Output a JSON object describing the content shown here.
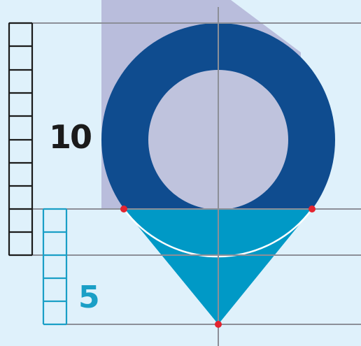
{
  "labels": {
    "big_scale": "10",
    "small_scale": "5"
  },
  "colors": {
    "background": "#dff1fb",
    "shadow": "#b9bddc",
    "ring": "#0f4c8f",
    "inner_circle": "#bfc3dd",
    "tip": "#0099c6",
    "guide_line": "#8c8f98",
    "big_scale": "#1b1b1b",
    "small_scale": "#1a9fc6",
    "marker": "#e4242f",
    "arc": "#ffffff"
  },
  "icons": {
    "main": "location-pin-icon",
    "markers": "red-dot-marker"
  }
}
